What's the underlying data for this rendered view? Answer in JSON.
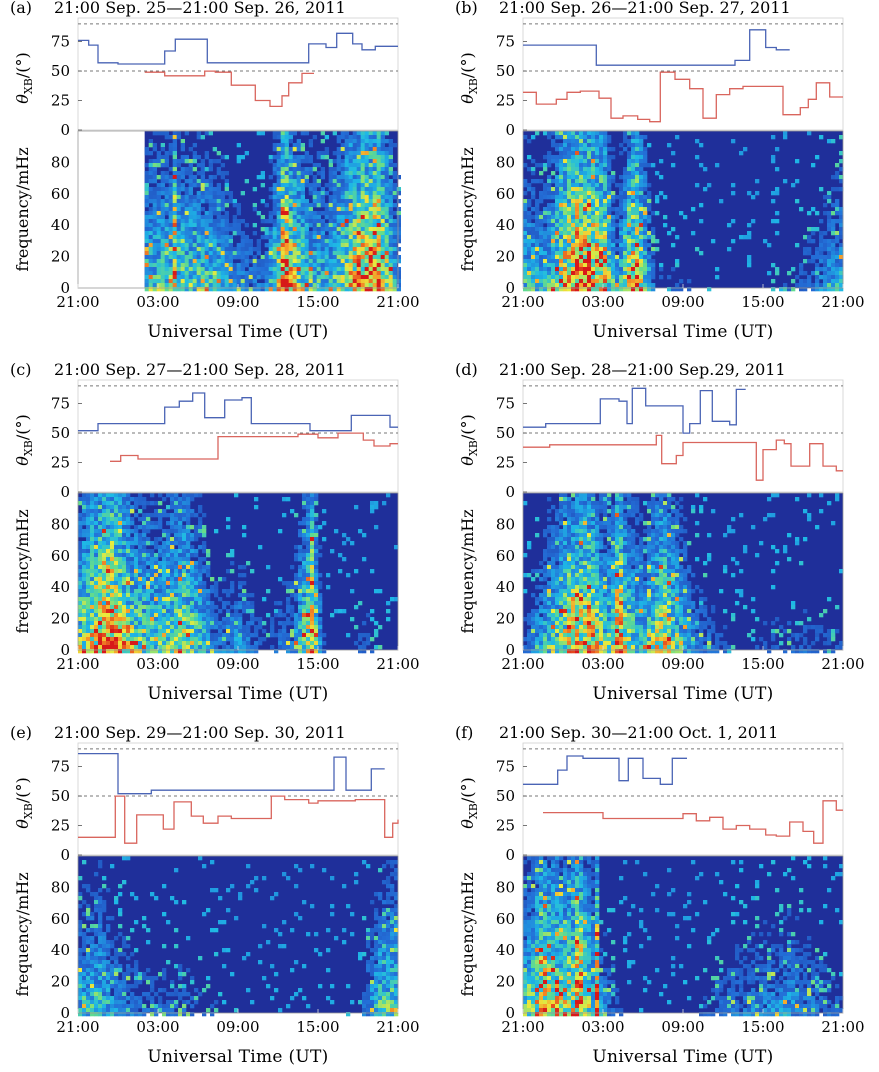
{
  "figure": {
    "theta_label_main": "θ",
    "theta_label_sub": "XB",
    "theta_label_unit": "/(°)",
    "freq_label": "frequency/mHz",
    "x_label": "Universal Time (UT)",
    "x_ticks": [
      "21:00",
      "03:00",
      "09:00",
      "15:00",
      "21:00"
    ],
    "theta_ticks": [
      "75",
      "50",
      "25",
      "0"
    ],
    "freq_ticks": [
      "80",
      "60",
      "40",
      "20",
      "0"
    ],
    "colors": {
      "upper_line": "#4a64b5",
      "lower_line": "#d9655d",
      "spectrogram_bg": "#1f2f9a",
      "dashed": "#777777"
    }
  },
  "chart_data": [
    {
      "id": "a",
      "tag": "(a)",
      "title": "21:00 Sep. 25—21:00 Sep. 26, 2011",
      "type": "line",
      "x_unit": "hours after 21:00 UT",
      "theta_ylim": [
        0,
        95
      ],
      "freq_ylim": [
        0,
        100
      ],
      "xlim": [
        0,
        24
      ],
      "reference_lines": [
        90,
        50
      ],
      "theta_upper": [
        [
          0,
          76
        ],
        [
          0.8,
          72
        ],
        [
          1.5,
          57
        ],
        [
          3,
          56
        ],
        [
          6.5,
          67
        ],
        [
          7.3,
          77
        ],
        [
          8.3,
          77
        ],
        [
          9.7,
          57
        ],
        [
          10.3,
          57
        ],
        [
          17.3,
          73
        ],
        [
          18.6,
          70
        ],
        [
          19.4,
          82
        ],
        [
          20.6,
          73
        ],
        [
          21.3,
          68
        ],
        [
          22.3,
          71
        ],
        [
          24,
          71
        ]
      ],
      "theta_lower": [
        [
          5,
          49
        ],
        [
          6.5,
          46
        ],
        [
          7.6,
          46
        ],
        [
          9.5,
          50
        ],
        [
          10.3,
          49
        ],
        [
          11.5,
          38
        ],
        [
          13.3,
          25
        ],
        [
          14.4,
          20
        ],
        [
          15.3,
          29
        ],
        [
          15.8,
          40
        ],
        [
          16.8,
          48
        ],
        [
          17.7,
          48
        ]
      ],
      "spectrogram": {
        "data_start": 5,
        "activity": [
          [
            5,
            0.55
          ],
          [
            8,
            0.6
          ],
          [
            10,
            0.55
          ],
          [
            12,
            0.35
          ],
          [
            14,
            0.3
          ],
          [
            15.5,
            0.9
          ],
          [
            17.5,
            0.55
          ],
          [
            19,
            0.5
          ],
          [
            20.5,
            0.85
          ],
          [
            22.5,
            1.0
          ],
          [
            23.5,
            0.6
          ],
          [
            24,
            0.4
          ]
        ],
        "spike_at": [
          7.3,
          15.6
        ]
      }
    },
    {
      "id": "b",
      "tag": "(b)",
      "title": "21:00 Sep. 26—21:00 Sep. 27, 2011",
      "type": "line",
      "x_unit": "hours after 21:00 UT",
      "theta_ylim": [
        0,
        95
      ],
      "freq_ylim": [
        0,
        100
      ],
      "xlim": [
        0,
        24
      ],
      "reference_lines": [
        90,
        50
      ],
      "theta_upper": [
        [
          0,
          72
        ],
        [
          0.6,
          72
        ],
        [
          5.5,
          55
        ],
        [
          6.4,
          55
        ],
        [
          15.9,
          59
        ],
        [
          16.5,
          59
        ],
        [
          17,
          85
        ],
        [
          18.2,
          70
        ],
        [
          19,
          68
        ],
        [
          20,
          68
        ]
      ],
      "theta_lower": [
        [
          0,
          32
        ],
        [
          1,
          22
        ],
        [
          2.5,
          26
        ],
        [
          3.3,
          32
        ],
        [
          4.3,
          33
        ],
        [
          5.7,
          27
        ],
        [
          6.6,
          10
        ],
        [
          7.5,
          12
        ],
        [
          8.6,
          9
        ],
        [
          9.5,
          7
        ],
        [
          10.3,
          49
        ],
        [
          11.4,
          43
        ],
        [
          12.5,
          35
        ],
        [
          13.5,
          10
        ],
        [
          14.5,
          30
        ],
        [
          15.5,
          35
        ],
        [
          16.5,
          37
        ],
        [
          17.5,
          37
        ],
        [
          19.5,
          13
        ],
        [
          20.8,
          19
        ],
        [
          21.4,
          26
        ],
        [
          22,
          40
        ],
        [
          23,
          28
        ],
        [
          24,
          28
        ]
      ],
      "spectrogram": {
        "data_start": 0,
        "activity": [
          [
            0,
            0.55
          ],
          [
            1.5,
            0.45
          ],
          [
            3,
            0.8
          ],
          [
            4,
            1.0
          ],
          [
            6,
            0.9
          ],
          [
            7,
            0.4
          ],
          [
            8.5,
            0.95
          ],
          [
            10,
            0.2
          ],
          [
            12,
            0.2
          ],
          [
            14,
            0.15
          ],
          [
            18,
            0.1
          ],
          [
            22,
            0.3
          ],
          [
            24,
            0.5
          ]
        ],
        "spike_at": []
      }
    },
    {
      "id": "c",
      "tag": "(c)",
      "title": "21:00 Sep. 27—21:00 Sep. 28, 2011",
      "type": "line",
      "x_unit": "hours after 21:00 UT",
      "theta_ylim": [
        0,
        95
      ],
      "freq_ylim": [
        0,
        100
      ],
      "xlim": [
        0,
        24
      ],
      "reference_lines": [
        90,
        50
      ],
      "theta_upper": [
        [
          0,
          52
        ],
        [
          0.8,
          52
        ],
        [
          1.5,
          58
        ],
        [
          2,
          58
        ],
        [
          6.5,
          72
        ],
        [
          7.6,
          77
        ],
        [
          8.6,
          84
        ],
        [
          9.5,
          63
        ],
        [
          10.3,
          63
        ],
        [
          11,
          78
        ],
        [
          12.3,
          80
        ],
        [
          13,
          58
        ],
        [
          13.8,
          58
        ],
        [
          17.4,
          52
        ],
        [
          18,
          52
        ],
        [
          20.5,
          65
        ],
        [
          21.1,
          65
        ],
        [
          23.4,
          55
        ],
        [
          24,
          55
        ]
      ],
      "theta_lower": [
        [
          2.4,
          26
        ],
        [
          3.2,
          31
        ],
        [
          4.5,
          28
        ],
        [
          10.5,
          47
        ],
        [
          11,
          47
        ],
        [
          14,
          47
        ],
        [
          16.5,
          49
        ],
        [
          17,
          49
        ],
        [
          18,
          46
        ],
        [
          19.5,
          50
        ],
        [
          21.4,
          44
        ],
        [
          22.2,
          39
        ],
        [
          23.4,
          41
        ],
        [
          24,
          41
        ]
      ],
      "spectrogram": {
        "data_start": 0,
        "activity": [
          [
            0,
            0.65
          ],
          [
            1.5,
            0.9
          ],
          [
            2.5,
            1.0
          ],
          [
            4,
            0.7
          ],
          [
            6,
            0.6
          ],
          [
            8,
            0.75
          ],
          [
            9,
            0.6
          ],
          [
            10.5,
            0.3
          ],
          [
            12,
            0.4
          ],
          [
            14,
            0.2
          ],
          [
            16,
            0.35
          ],
          [
            17.5,
            0.85
          ],
          [
            18.5,
            0.2
          ],
          [
            20,
            0.1
          ],
          [
            21.5,
            0.25
          ],
          [
            24,
            0.1
          ]
        ],
        "spike_at": [
          17.6
        ]
      }
    },
    {
      "id": "d",
      "tag": "(d)",
      "title": "21:00 Sep. 28—21:00 Sep.29, 2011",
      "type": "line",
      "x_unit": "hours after 21:00 UT",
      "theta_ylim": [
        0,
        95
      ],
      "freq_ylim": [
        0,
        100
      ],
      "xlim": [
        0,
        24
      ],
      "reference_lines": [
        90,
        50
      ],
      "theta_upper": [
        [
          0,
          55
        ],
        [
          0.6,
          55
        ],
        [
          1.7,
          58
        ],
        [
          2.5,
          58
        ],
        [
          5.8,
          79
        ],
        [
          7.2,
          77
        ],
        [
          7.8,
          58
        ],
        [
          8.2,
          88
        ],
        [
          9.2,
          73
        ],
        [
          10,
          73
        ],
        [
          12,
          50
        ],
        [
          12.5,
          58
        ],
        [
          13.3,
          86
        ],
        [
          14.2,
          60
        ],
        [
          15.5,
          57
        ],
        [
          16,
          87
        ],
        [
          16.7,
          87
        ]
      ],
      "theta_lower": [
        [
          0,
          38
        ],
        [
          0.8,
          38
        ],
        [
          2,
          40
        ],
        [
          3.4,
          40
        ],
        [
          10,
          48
        ],
        [
          10.4,
          24
        ],
        [
          11.5,
          31
        ],
        [
          12,
          42
        ],
        [
          12.7,
          42
        ],
        [
          17.5,
          10
        ],
        [
          18,
          36
        ],
        [
          19,
          44
        ],
        [
          19.6,
          41
        ],
        [
          20.1,
          22
        ],
        [
          21.5,
          41
        ],
        [
          22.5,
          22
        ],
        [
          23.5,
          18
        ],
        [
          24,
          18
        ]
      ],
      "spectrogram": {
        "data_start": 0,
        "activity": [
          [
            0,
            0.2
          ],
          [
            1,
            0.4
          ],
          [
            2,
            0.55
          ],
          [
            3.5,
            0.8
          ],
          [
            5,
            0.9
          ],
          [
            6,
            0.6
          ],
          [
            7.5,
            0.75
          ],
          [
            9,
            0.5
          ],
          [
            10.5,
            0.85
          ],
          [
            11.5,
            0.6
          ],
          [
            13,
            0.35
          ],
          [
            14.5,
            0.25
          ],
          [
            16,
            0.15
          ],
          [
            18,
            0.2
          ],
          [
            21,
            0.25
          ],
          [
            24,
            0.2
          ]
        ],
        "spike_at": [
          7.2
        ]
      }
    },
    {
      "id": "e",
      "tag": "(e)",
      "title": "21:00 Sep. 29—21:00 Sep. 30, 2011",
      "type": "line",
      "x_unit": "hours after 21:00 UT",
      "theta_ylim": [
        0,
        95
      ],
      "freq_ylim": [
        0,
        100
      ],
      "xlim": [
        0,
        24
      ],
      "reference_lines": [
        90,
        50
      ],
      "theta_upper": [
        [
          0,
          86
        ],
        [
          0.5,
          86
        ],
        [
          3,
          52
        ],
        [
          3.6,
          52
        ],
        [
          5.5,
          55
        ],
        [
          6,
          55
        ],
        [
          17.8,
          55
        ],
        [
          18.2,
          55
        ],
        [
          19.2,
          83
        ],
        [
          20.1,
          55
        ],
        [
          21.5,
          55
        ],
        [
          22,
          73
        ],
        [
          23,
          73
        ]
      ],
      "theta_lower": [
        [
          0,
          15
        ],
        [
          0.4,
          15
        ],
        [
          2.8,
          50
        ],
        [
          3.5,
          10
        ],
        [
          4.4,
          34
        ],
        [
          5,
          34
        ],
        [
          6.4,
          22
        ],
        [
          7.2,
          45
        ],
        [
          8.5,
          33
        ],
        [
          9.4,
          27
        ],
        [
          10.5,
          33
        ],
        [
          11.5,
          31
        ],
        [
          13,
          31
        ],
        [
          14.5,
          50
        ],
        [
          15.5,
          47
        ],
        [
          17.3,
          44
        ],
        [
          18,
          46
        ],
        [
          20.3,
          46
        ],
        [
          20.8,
          47
        ],
        [
          23,
          15
        ],
        [
          23.6,
          27
        ],
        [
          24,
          30
        ]
      ],
      "spectrogram": {
        "data_start": 0,
        "activity": [
          [
            0,
            0.45
          ],
          [
            1.5,
            0.55
          ],
          [
            3,
            0.35
          ],
          [
            5,
            0.25
          ],
          [
            8,
            0.25
          ],
          [
            10,
            0.2
          ],
          [
            12,
            0.1
          ],
          [
            14,
            0.08
          ],
          [
            18,
            0.1
          ],
          [
            21,
            0.15
          ],
          [
            22.5,
            0.55
          ],
          [
            24,
            0.6
          ]
        ],
        "spike_at": []
      }
    },
    {
      "id": "f",
      "tag": "(f)",
      "title": "21:00 Sep. 30—21:00 Oct. 1, 2011",
      "type": "line",
      "x_unit": "hours after 21:00 UT",
      "theta_ylim": [
        0,
        95
      ],
      "freq_ylim": [
        0,
        100
      ],
      "xlim": [
        0,
        24
      ],
      "reference_lines": [
        90,
        50
      ],
      "theta_upper": [
        [
          0,
          60
        ],
        [
          0.8,
          60
        ],
        [
          2.6,
          72
        ],
        [
          3.3,
          84
        ],
        [
          4.5,
          82
        ],
        [
          5.5,
          82
        ],
        [
          7.2,
          63
        ],
        [
          7.9,
          82
        ],
        [
          9,
          65
        ],
        [
          10.3,
          60
        ],
        [
          11.2,
          82
        ],
        [
          12.3,
          82
        ]
      ],
      "theta_lower": [
        [
          1.5,
          36
        ],
        [
          2.3,
          36
        ],
        [
          6,
          31
        ],
        [
          6.7,
          31
        ],
        [
          12,
          35
        ],
        [
          13,
          29
        ],
        [
          14,
          32
        ],
        [
          15,
          22
        ],
        [
          16,
          25
        ],
        [
          17,
          22
        ],
        [
          18.2,
          17
        ],
        [
          19,
          16
        ],
        [
          20,
          28
        ],
        [
          21,
          20
        ],
        [
          21.8,
          10
        ],
        [
          22.5,
          46
        ],
        [
          23.5,
          38
        ],
        [
          24,
          38
        ]
      ],
      "spectrogram": {
        "data_start": 0,
        "activity": [
          [
            0,
            0.55
          ],
          [
            1.5,
            0.85
          ],
          [
            3,
            0.75
          ],
          [
            4.5,
            0.8
          ],
          [
            6,
            0.35
          ],
          [
            8,
            0.1
          ],
          [
            12,
            0.1
          ],
          [
            14.5,
            0.25
          ],
          [
            16,
            0.3
          ],
          [
            18,
            0.35
          ],
          [
            20,
            0.4
          ],
          [
            22,
            0.3
          ],
          [
            24,
            0.2
          ]
        ],
        "spike_at": [
          4.2,
          5.6
        ]
      }
    }
  ]
}
